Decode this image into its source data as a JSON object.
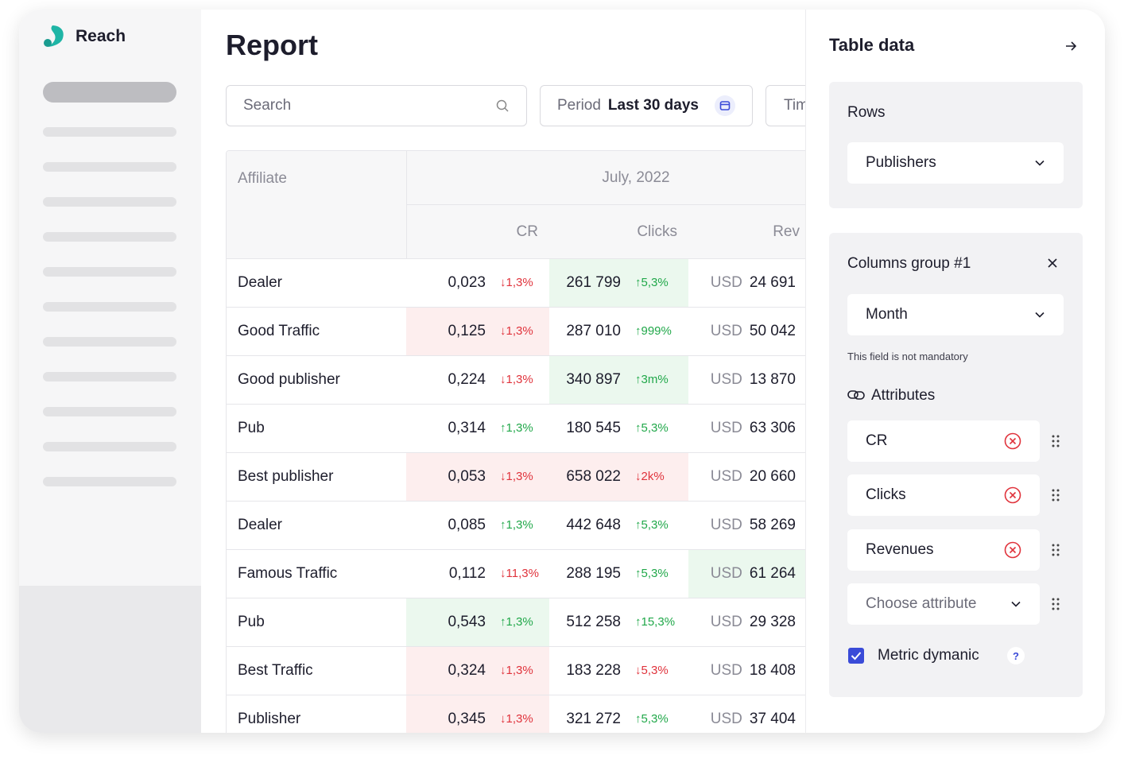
{
  "brand": "Reach",
  "header": {
    "title": "Report"
  },
  "filters": {
    "search_placeholder": "Search",
    "period_label": "Period",
    "period_value": "Last 30 days",
    "third": "Tim"
  },
  "table": {
    "affiliate_header": "Affiliate",
    "period_header": "July, 2022",
    "columns": [
      "CR",
      "Clicks",
      "Rev"
    ],
    "rows": [
      {
        "name": "Dealer",
        "cr": "0,023",
        "cr_change": "↓1,3%",
        "clicks": "261 799",
        "clicks_change": "↑5,3%",
        "currency": "USD",
        "rev": "24 691",
        "clicks_bg": "#ebf8ee"
      },
      {
        "name": "Good Traffic",
        "cr": "0,125",
        "cr_change": "↓1,3%",
        "clicks": "287 010",
        "clicks_change": "↑999%",
        "currency": "USD",
        "rev": "50 042",
        "cr_bg": "#fdeeee"
      },
      {
        "name": "Good publisher",
        "cr": "0,224",
        "cr_change": "↓1,3%",
        "clicks": "340 897",
        "clicks_change": "↑3m%",
        "currency": "USD",
        "rev": "13 870",
        "clicks_bg": "#ebf8ee"
      },
      {
        "name": "Pub",
        "cr": "0,314",
        "cr_change": "↑1,3%",
        "clicks": "180 545",
        "clicks_change": "↑5,3%",
        "currency": "USD",
        "rev": "63 306"
      },
      {
        "name": "Best publisher",
        "cr": "0,053",
        "cr_change": "↓1,3%",
        "clicks": "658 022",
        "clicks_change": "↓2k%",
        "currency": "USD",
        "rev": "20 660",
        "cr_bg": "#fdeeee",
        "clicks_bg": "#fdeeee"
      },
      {
        "name": "Dealer",
        "cr": "0,085",
        "cr_change": "↑1,3%",
        "clicks": "442 648",
        "clicks_change": "↑5,3%",
        "currency": "USD",
        "rev": "58 269"
      },
      {
        "name": "Famous Traffic",
        "cr": "0,112",
        "cr_change": "↓11,3%",
        "clicks": "288 195",
        "clicks_change": "↑5,3%",
        "currency": "USD",
        "rev": "61 264",
        "rev_bg": "#ebf8ee"
      },
      {
        "name": "Pub",
        "cr": "0,543",
        "cr_change": "↑1,3%",
        "clicks": "512 258",
        "clicks_change": "↑15,3%",
        "currency": "USD",
        "rev": "29 328",
        "cr_bg": "#ebf8ee"
      },
      {
        "name": "Best Traffic",
        "cr": "0,324",
        "cr_change": "↓1,3%",
        "clicks": "183 228",
        "clicks_change": "↓5,3%",
        "currency": "USD",
        "rev": "18 408",
        "cr_bg": "#fdeeee"
      },
      {
        "name": "Publisher",
        "cr": "0,345",
        "cr_change": "↓1,3%",
        "clicks": "321 272",
        "clicks_change": "↑5,3%",
        "currency": "USD",
        "rev": "37 404",
        "cr_bg": "#fdeeee"
      }
    ]
  },
  "panel": {
    "title": "Table data",
    "rows_section": {
      "label": "Rows",
      "value": "Publishers"
    },
    "columns_group": {
      "title": "Columns group #1",
      "value": "Month",
      "hint": "This field is not mandatory",
      "attributes_label": "Attributes",
      "attributes": [
        "CR",
        "Clicks",
        "Revenues"
      ],
      "choose_placeholder": "Choose attribute",
      "checkbox_label": "Metric dymanic",
      "checkbox_checked": true,
      "help": "?"
    }
  }
}
